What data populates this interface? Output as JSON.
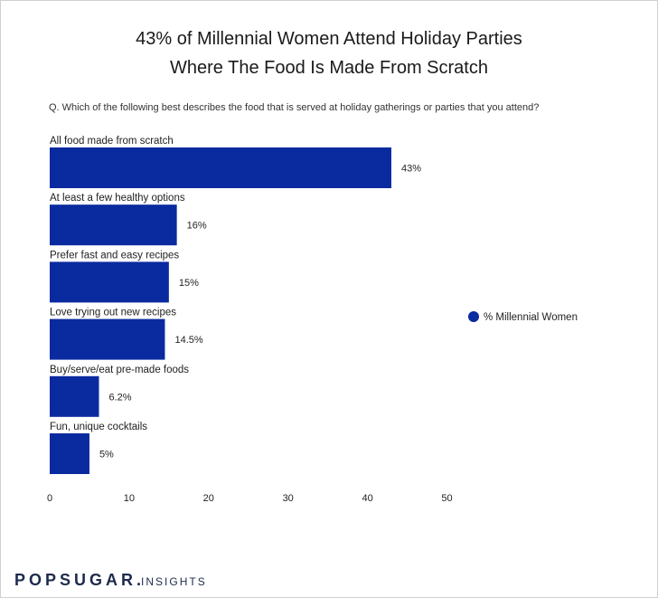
{
  "title_line1": "43% of Millennial Women Attend Holiday Parties",
  "title_line2": "Where The Food Is Made From Scratch",
  "question": "Q. Which of the following best describes the food that is served at holiday gatherings or parties that you attend?",
  "brand": {
    "name": "POPSUGAR",
    "dot": ".",
    "suffix": "INSIGHTS"
  },
  "colors": {
    "bar": "#0a2a9f",
    "text": "#222222"
  },
  "chart_data": {
    "type": "bar",
    "orientation": "horizontal",
    "categories": [
      "All food made from scratch",
      "At least a few healthy options",
      "Prefer fast and easy recipes",
      "Love trying out new recipes",
      "Buy/serve/eat pre-made foods",
      "Fun, unique cocktails"
    ],
    "series": [
      {
        "name": "% Millennial Women",
        "values": [
          43,
          16,
          15,
          14.5,
          6.2,
          5
        ]
      }
    ],
    "data_labels": [
      "43%",
      "16%",
      "15%",
      "14.5%",
      "6.2%",
      "5%"
    ],
    "xlim": [
      0,
      50
    ],
    "xticks": [
      "0",
      "10",
      "20",
      "30",
      "40",
      "50"
    ],
    "grid": false,
    "legend_position": "right"
  }
}
